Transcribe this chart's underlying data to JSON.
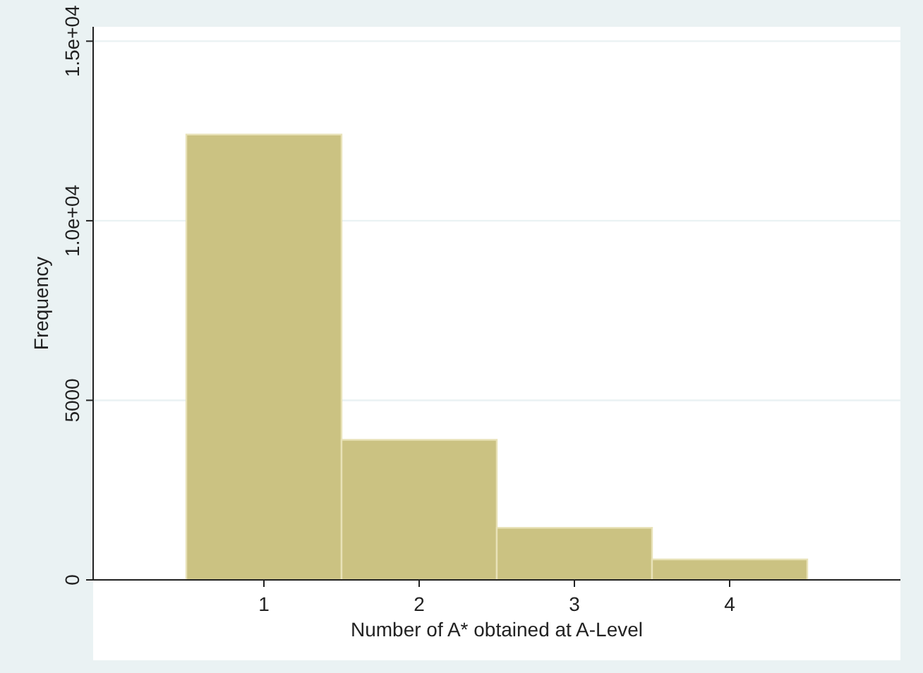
{
  "chart_data": {
    "type": "histogram",
    "xlabel": "Number of A* obtained at A-Level",
    "ylabel": "Frequency",
    "bins": [
      0.5,
      1.5,
      2.5,
      3.5,
      4.5
    ],
    "values": [
      12400,
      3900,
      1450,
      570
    ],
    "color": "#cbc282",
    "xlim": [
      -0.1,
      5.1
    ],
    "xticks": [
      1,
      2,
      3,
      4
    ],
    "ylim": [
      0,
      15400
    ],
    "yticks": [
      0,
      5000,
      {
        "value": 10000,
        "label": "1.0e+04"
      },
      {
        "value": 15000,
        "label": "1.5e+04"
      }
    ],
    "grid": "y"
  }
}
